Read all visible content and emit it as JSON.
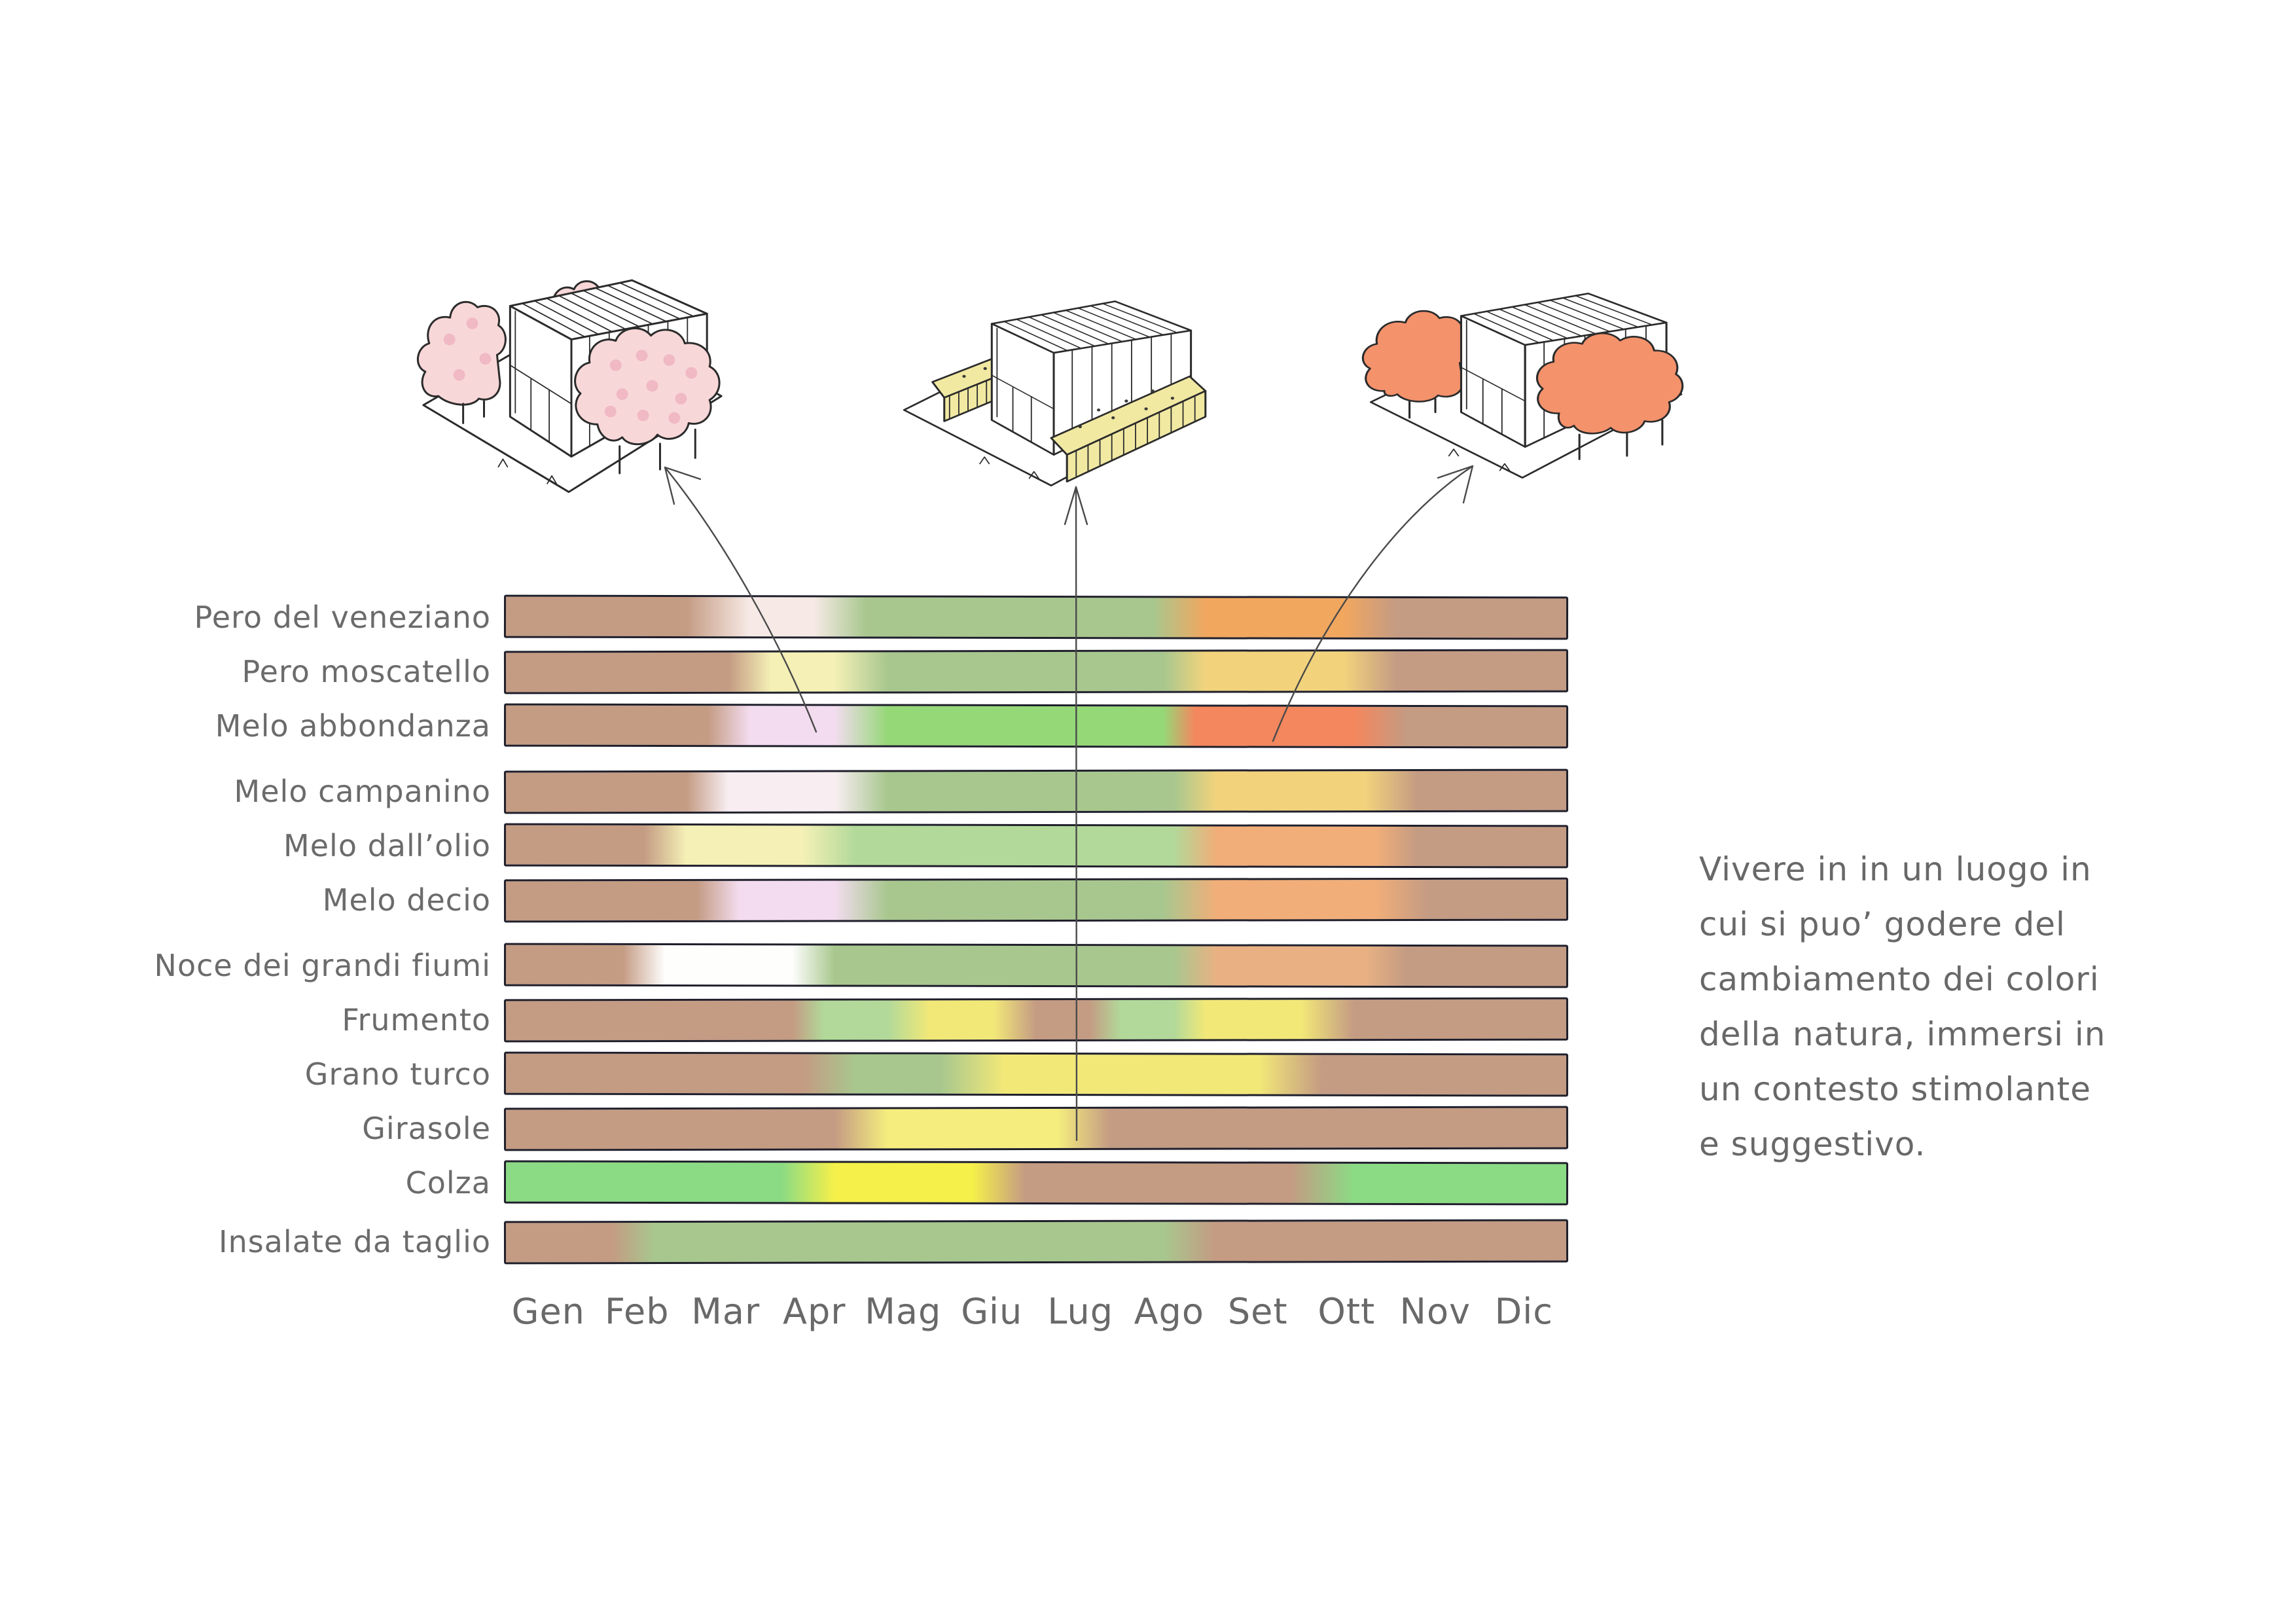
{
  "palette": {
    "ink": "#2b2b2b",
    "bar_outline": "#1f1f2b",
    "arrow_gray": "#4a4a4a",
    "text_gray": "#6b6b6b",
    "brown": "#c49b83",
    "sage_green": "#a8c78e",
    "light_green": "#b2d999",
    "bright_green": "#95d878",
    "colza_green": "#8bdb84",
    "blossom_white": "#f7eae6",
    "pale_pink": "#f8eef2",
    "pink": "#f3dcef",
    "white": "#fefefd",
    "pale_yellow": "#f4f0b6",
    "wheat_yellow": "#f2e878",
    "golden_yellow": "#f2d37c",
    "sun_yellow": "#f5ee7e",
    "bright_yellow": "#f5f04a",
    "orange": "#f2a75f",
    "apricot": "#f1ae79",
    "salmon": "#f4875d",
    "tan_orange": "#e9b183",
    "sketch_pink": "#f8d7d8",
    "sketch_pink_dot": "#f0b9c4",
    "sketch_hay": "#f1e9a2",
    "sketch_orange": "#f4926c"
  },
  "sketches": [
    {
      "name": "spring-blossom-house",
      "season": "spring"
    },
    {
      "name": "summer-hay-field-house",
      "season": "summer"
    },
    {
      "name": "autumn-foliage-house",
      "season": "autumn"
    }
  ],
  "chart_data": {
    "type": "heatmap",
    "title": "",
    "xlabel": "",
    "ylabel": "",
    "legend_position": "none",
    "grid": false,
    "months": [
      "Gen",
      "Feb",
      "Mar",
      "Apr",
      "Mag",
      "Giu",
      "Lug",
      "Ago",
      "Set",
      "Ott",
      "Nov",
      "Dic"
    ],
    "rows": [
      {
        "label": "Pero del veneziano",
        "segments": [
          {
            "color": "brown",
            "from": 0,
            "to": 17
          },
          {
            "color": "blossom_white",
            "from": 23,
            "to": 29
          },
          {
            "color": "sage_green",
            "from": 34,
            "to": 61
          },
          {
            "color": "orange",
            "from": 66,
            "to": 79
          },
          {
            "color": "brown",
            "from": 84,
            "to": 100
          }
        ]
      },
      {
        "label": "Pero moscatello",
        "segments": [
          {
            "color": "brown",
            "from": 0,
            "to": 21
          },
          {
            "color": "pale_yellow",
            "from": 25,
            "to": 31
          },
          {
            "color": "sage_green",
            "from": 36,
            "to": 62
          },
          {
            "color": "golden_yellow",
            "from": 66,
            "to": 79
          },
          {
            "color": "brown",
            "from": 84,
            "to": 100
          }
        ]
      },
      {
        "label": "Melo abbondanza",
        "segments": [
          {
            "color": "brown",
            "from": 0,
            "to": 19
          },
          {
            "color": "pink",
            "from": 23,
            "to": 31
          },
          {
            "color": "bright_green",
            "from": 36,
            "to": 62
          },
          {
            "color": "salmon",
            "from": 65,
            "to": 80
          },
          {
            "color": "brown",
            "from": 85,
            "to": 100
          }
        ]
      },
      {
        "label": "Melo campanino",
        "segments": [
          {
            "color": "brown",
            "from": 0,
            "to": 17
          },
          {
            "color": "pale_pink",
            "from": 21,
            "to": 31
          },
          {
            "color": "sage_green",
            "from": 36,
            "to": 63
          },
          {
            "color": "golden_yellow",
            "from": 67,
            "to": 81
          },
          {
            "color": "brown",
            "from": 86,
            "to": 100
          }
        ]
      },
      {
        "label": "Melo dall’olio",
        "segments": [
          {
            "color": "brown",
            "from": 0,
            "to": 13
          },
          {
            "color": "pale_yellow",
            "from": 17,
            "to": 28
          },
          {
            "color": "light_green",
            "from": 33,
            "to": 63
          },
          {
            "color": "apricot",
            "from": 67,
            "to": 82
          },
          {
            "color": "brown",
            "from": 86,
            "to": 100
          }
        ]
      },
      {
        "label": "Melo decio",
        "segments": [
          {
            "color": "brown",
            "from": 0,
            "to": 18
          },
          {
            "color": "pink",
            "from": 22,
            "to": 31
          },
          {
            "color": "sage_green",
            "from": 36,
            "to": 62
          },
          {
            "color": "apricot",
            "from": 67,
            "to": 82
          },
          {
            "color": "brown",
            "from": 87,
            "to": 100
          }
        ]
      },
      {
        "label": "Noce dei grandi fiumi",
        "segments": [
          {
            "color": "brown",
            "from": 0,
            "to": 11
          },
          {
            "color": "white",
            "from": 15,
            "to": 27
          },
          {
            "color": "sage_green",
            "from": 31,
            "to": 63
          },
          {
            "color": "tan_orange",
            "from": 67,
            "to": 81
          },
          {
            "color": "brown",
            "from": 85,
            "to": 100
          }
        ]
      },
      {
        "label": "Frumento",
        "segments": [
          {
            "color": "brown",
            "from": 0,
            "to": 27
          },
          {
            "color": "light_green",
            "from": 30,
            "to": 36
          },
          {
            "color": "wheat_yellow",
            "from": 40,
            "to": 46
          },
          {
            "color": "brown",
            "from": 50,
            "to": 55
          },
          {
            "color": "light_green",
            "from": 58,
            "to": 63
          },
          {
            "color": "wheat_yellow",
            "from": 66,
            "to": 75
          },
          {
            "color": "brown",
            "from": 80,
            "to": 100
          }
        ]
      },
      {
        "label": "Grano turco",
        "segments": [
          {
            "color": "brown",
            "from": 0,
            "to": 28
          },
          {
            "color": "sage_green",
            "from": 33,
            "to": 41
          },
          {
            "color": "wheat_yellow",
            "from": 47,
            "to": 71
          },
          {
            "color": "brown",
            "from": 77,
            "to": 100
          }
        ]
      },
      {
        "label": "Girasole",
        "segments": [
          {
            "color": "brown",
            "from": 0,
            "to": 31
          },
          {
            "color": "sun_yellow",
            "from": 36,
            "to": 52
          },
          {
            "color": "brown",
            "from": 57,
            "to": 100
          }
        ]
      },
      {
        "label": "Colza",
        "segments": [
          {
            "color": "colza_green",
            "from": 0,
            "to": 26
          },
          {
            "color": "bright_yellow",
            "from": 31,
            "to": 44
          },
          {
            "color": "brown",
            "from": 49,
            "to": 74
          },
          {
            "color": "colza_green",
            "from": 80,
            "to": 100
          }
        ]
      },
      {
        "label": "Insalate da taglio",
        "segments": [
          {
            "color": "brown",
            "from": 0,
            "to": 10
          },
          {
            "color": "sage_green",
            "from": 14,
            "to": 62
          },
          {
            "color": "brown",
            "from": 67,
            "to": 100
          }
        ]
      }
    ]
  },
  "caption": {
    "text": "Vivere in in un luogo in cui si puo’ godere del cambiamento dei colori della natura, immersi in un contesto stimolante e suggestivo.",
    "lines": [
      "Vivere in in un luogo in",
      "cui si puo’ godere del",
      "cambiamento dei colori",
      "della natura, immersi in",
      "un contesto stimolante",
      "e suggestivo."
    ]
  }
}
